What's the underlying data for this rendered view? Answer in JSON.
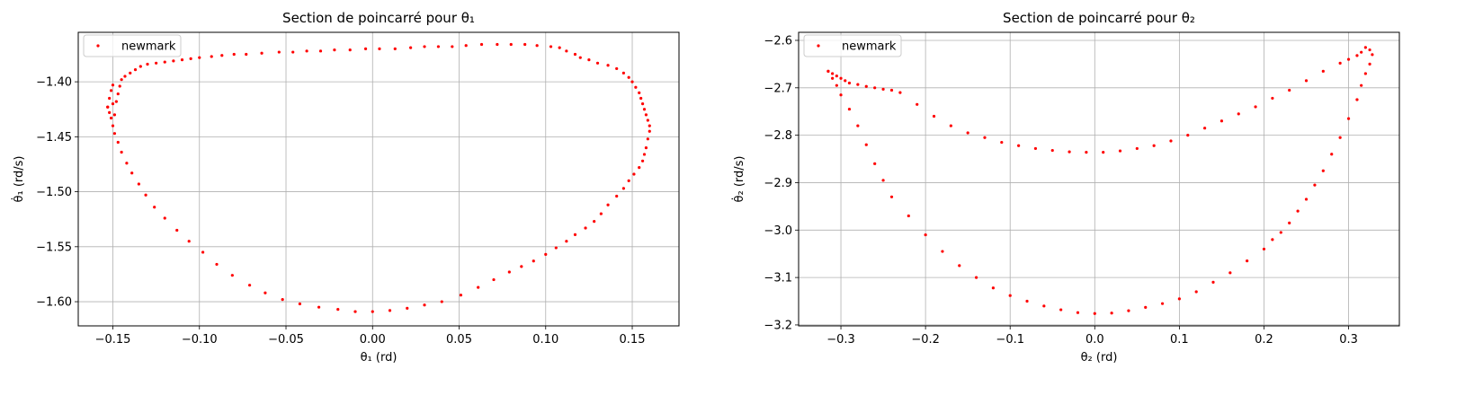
{
  "chart_data": [
    {
      "type": "scatter",
      "title": "Section de poincarré pour θ₁",
      "xlabel": "θ₁ (rd)",
      "ylabel": "θ̇₁ (rd/s)",
      "xlim": [
        -0.17,
        0.177
      ],
      "ylim": [
        -1.622,
        -1.355
      ],
      "xticks": [
        -0.15,
        -0.1,
        -0.05,
        0.0,
        0.05,
        0.1,
        0.15
      ],
      "xtick_labels": [
        "−0.15",
        "−0.10",
        "−0.05",
        "0.00",
        "0.05",
        "0.10",
        "0.15"
      ],
      "yticks": [
        -1.6,
        -1.55,
        -1.5,
        -1.45,
        -1.4
      ],
      "ytick_labels": [
        "−1.60",
        "−1.55",
        "−1.50",
        "−1.45",
        "−1.40"
      ],
      "grid": true,
      "legend": "top-left",
      "series": [
        {
          "name": "newmark",
          "color": "#ff0000",
          "marker": "dot",
          "x": [
            -0.153,
            -0.152,
            -0.151,
            -0.15,
            -0.15,
            -0.149,
            -0.148,
            -0.147,
            -0.146,
            -0.145,
            -0.143,
            -0.14,
            -0.137,
            -0.134,
            -0.13,
            -0.125,
            -0.12,
            -0.115,
            -0.11,
            -0.105,
            -0.1,
            -0.093,
            -0.087,
            -0.08,
            -0.073,
            -0.064,
            -0.054,
            -0.046,
            -0.038,
            -0.03,
            -0.022,
            -0.013,
            -0.004,
            0.004,
            0.013,
            0.022,
            0.03,
            0.038,
            0.046,
            0.054,
            0.063,
            0.072,
            0.08,
            0.088,
            0.095,
            0.103,
            0.108,
            0.112,
            0.117,
            0.12,
            0.125,
            0.13,
            0.136,
            0.141,
            0.145,
            0.148,
            0.15,
            0.152,
            0.154,
            0.155,
            0.156,
            0.157,
            0.158,
            0.159,
            0.16,
            0.16,
            0.159,
            0.158,
            0.157,
            0.156,
            0.154,
            0.151,
            0.148,
            0.145,
            0.141,
            0.136,
            0.132,
            0.128,
            0.123,
            0.117,
            0.112,
            0.106,
            0.1,
            0.093,
            0.086,
            0.079,
            0.07,
            0.061,
            0.051,
            0.04,
            0.03,
            0.02,
            0.01,
            0.0,
            -0.01,
            -0.02,
            -0.031,
            -0.042,
            -0.052,
            -0.062,
            -0.071,
            -0.081,
            -0.09,
            -0.098,
            -0.106,
            -0.113,
            -0.12,
            -0.126,
            -0.131,
            -0.135,
            -0.139,
            -0.142,
            -0.145,
            -0.147,
            -0.149,
            -0.15,
            -0.151,
            -0.152,
            -0.153
          ],
          "y": [
            -1.423,
            -1.415,
            -1.408,
            -1.403,
            -1.42,
            -1.43,
            -1.418,
            -1.411,
            -1.404,
            -1.398,
            -1.395,
            -1.392,
            -1.389,
            -1.386,
            -1.384,
            -1.383,
            -1.382,
            -1.381,
            -1.38,
            -1.379,
            -1.378,
            -1.377,
            -1.376,
            -1.375,
            -1.375,
            -1.374,
            -1.373,
            -1.373,
            -1.372,
            -1.372,
            -1.371,
            -1.371,
            -1.37,
            -1.37,
            -1.37,
            -1.369,
            -1.368,
            -1.368,
            -1.368,
            -1.367,
            -1.366,
            -1.366,
            -1.366,
            -1.366,
            -1.367,
            -1.368,
            -1.369,
            -1.372,
            -1.375,
            -1.378,
            -1.38,
            -1.383,
            -1.385,
            -1.388,
            -1.392,
            -1.396,
            -1.4,
            -1.405,
            -1.41,
            -1.415,
            -1.42,
            -1.425,
            -1.43,
            -1.435,
            -1.44,
            -1.445,
            -1.452,
            -1.46,
            -1.466,
            -1.472,
            -1.478,
            -1.484,
            -1.49,
            -1.497,
            -1.504,
            -1.512,
            -1.52,
            -1.527,
            -1.533,
            -1.539,
            -1.545,
            -1.551,
            -1.557,
            -1.563,
            -1.568,
            -1.573,
            -1.58,
            -1.587,
            -1.594,
            -1.6,
            -1.603,
            -1.606,
            -1.608,
            -1.609,
            -1.609,
            -1.607,
            -1.605,
            -1.602,
            -1.598,
            -1.592,
            -1.585,
            -1.576,
            -1.566,
            -1.555,
            -1.545,
            -1.535,
            -1.524,
            -1.514,
            -1.503,
            -1.493,
            -1.483,
            -1.474,
            -1.464,
            -1.455,
            -1.447,
            -1.44,
            -1.433,
            -1.428,
            -1.423
          ]
        }
      ]
    },
    {
      "type": "scatter",
      "title": "Section de poincarré pour θ₂",
      "xlabel": "θ₂ (rd)",
      "ylabel": "θ̇₂ (rd/s)",
      "xlim": [
        -0.35,
        0.36
      ],
      "ylim": [
        -3.202,
        -2.583
      ],
      "xticks": [
        -0.3,
        -0.2,
        -0.1,
        0.0,
        0.1,
        0.2,
        0.3
      ],
      "xtick_labels": [
        "−0.3",
        "−0.2",
        "−0.1",
        "0.0",
        "0.1",
        "0.2",
        "0.3"
      ],
      "yticks": [
        -3.2,
        -3.1,
        -3.0,
        -2.9,
        -2.8,
        -2.7,
        -2.6
      ],
      "ytick_labels": [
        "−3.2",
        "−3.1",
        "−3.0",
        "−2.9",
        "−2.8",
        "−2.7",
        "−2.6"
      ],
      "grid": true,
      "legend": "top-left",
      "series": [
        {
          "name": "newmark",
          "color": "#ff0000",
          "marker": "dot",
          "x": [
            -0.315,
            -0.31,
            -0.305,
            -0.3,
            -0.295,
            -0.29,
            -0.28,
            -0.27,
            -0.26,
            -0.25,
            -0.24,
            -0.23,
            -0.21,
            -0.19,
            -0.17,
            -0.15,
            -0.13,
            -0.11,
            -0.09,
            -0.07,
            -0.05,
            -0.03,
            -0.01,
            0.01,
            0.03,
            0.05,
            0.07,
            0.09,
            0.11,
            0.13,
            0.15,
            0.17,
            0.19,
            0.21,
            0.23,
            0.25,
            0.27,
            0.29,
            0.3,
            0.31,
            0.315,
            0.32,
            0.325,
            0.328,
            0.325,
            0.32,
            0.315,
            0.31,
            0.3,
            0.29,
            0.28,
            0.27,
            0.26,
            0.25,
            0.24,
            0.23,
            0.22,
            0.21,
            0.2,
            0.18,
            0.16,
            0.14,
            0.12,
            0.1,
            0.08,
            0.06,
            0.04,
            0.02,
            0.0,
            -0.02,
            -0.04,
            -0.06,
            -0.08,
            -0.1,
            -0.12,
            -0.14,
            -0.16,
            -0.18,
            -0.2,
            -0.22,
            -0.24,
            -0.25,
            -0.26,
            -0.27,
            -0.28,
            -0.29,
            -0.3,
            -0.305,
            -0.31,
            -0.315
          ],
          "y": [
            -2.665,
            -2.67,
            -2.675,
            -2.68,
            -2.685,
            -2.69,
            -2.693,
            -2.697,
            -2.7,
            -2.703,
            -2.705,
            -2.71,
            -2.735,
            -2.76,
            -2.78,
            -2.795,
            -2.805,
            -2.815,
            -2.822,
            -2.828,
            -2.832,
            -2.835,
            -2.836,
            -2.836,
            -2.833,
            -2.828,
            -2.822,
            -2.812,
            -2.8,
            -2.785,
            -2.77,
            -2.755,
            -2.74,
            -2.722,
            -2.705,
            -2.685,
            -2.665,
            -2.648,
            -2.64,
            -2.632,
            -2.625,
            -2.615,
            -2.62,
            -2.63,
            -2.65,
            -2.67,
            -2.695,
            -2.725,
            -2.765,
            -2.805,
            -2.84,
            -2.875,
            -2.905,
            -2.935,
            -2.96,
            -2.985,
            -3.005,
            -3.02,
            -3.04,
            -3.065,
            -3.09,
            -3.11,
            -3.13,
            -3.145,
            -3.155,
            -3.163,
            -3.17,
            -3.175,
            -3.176,
            -3.174,
            -3.168,
            -3.16,
            -3.15,
            -3.138,
            -3.122,
            -3.1,
            -3.075,
            -3.045,
            -3.01,
            -2.97,
            -2.93,
            -2.895,
            -2.86,
            -2.82,
            -2.78,
            -2.745,
            -2.715,
            -2.695,
            -2.68,
            -2.665
          ]
        }
      ]
    }
  ]
}
